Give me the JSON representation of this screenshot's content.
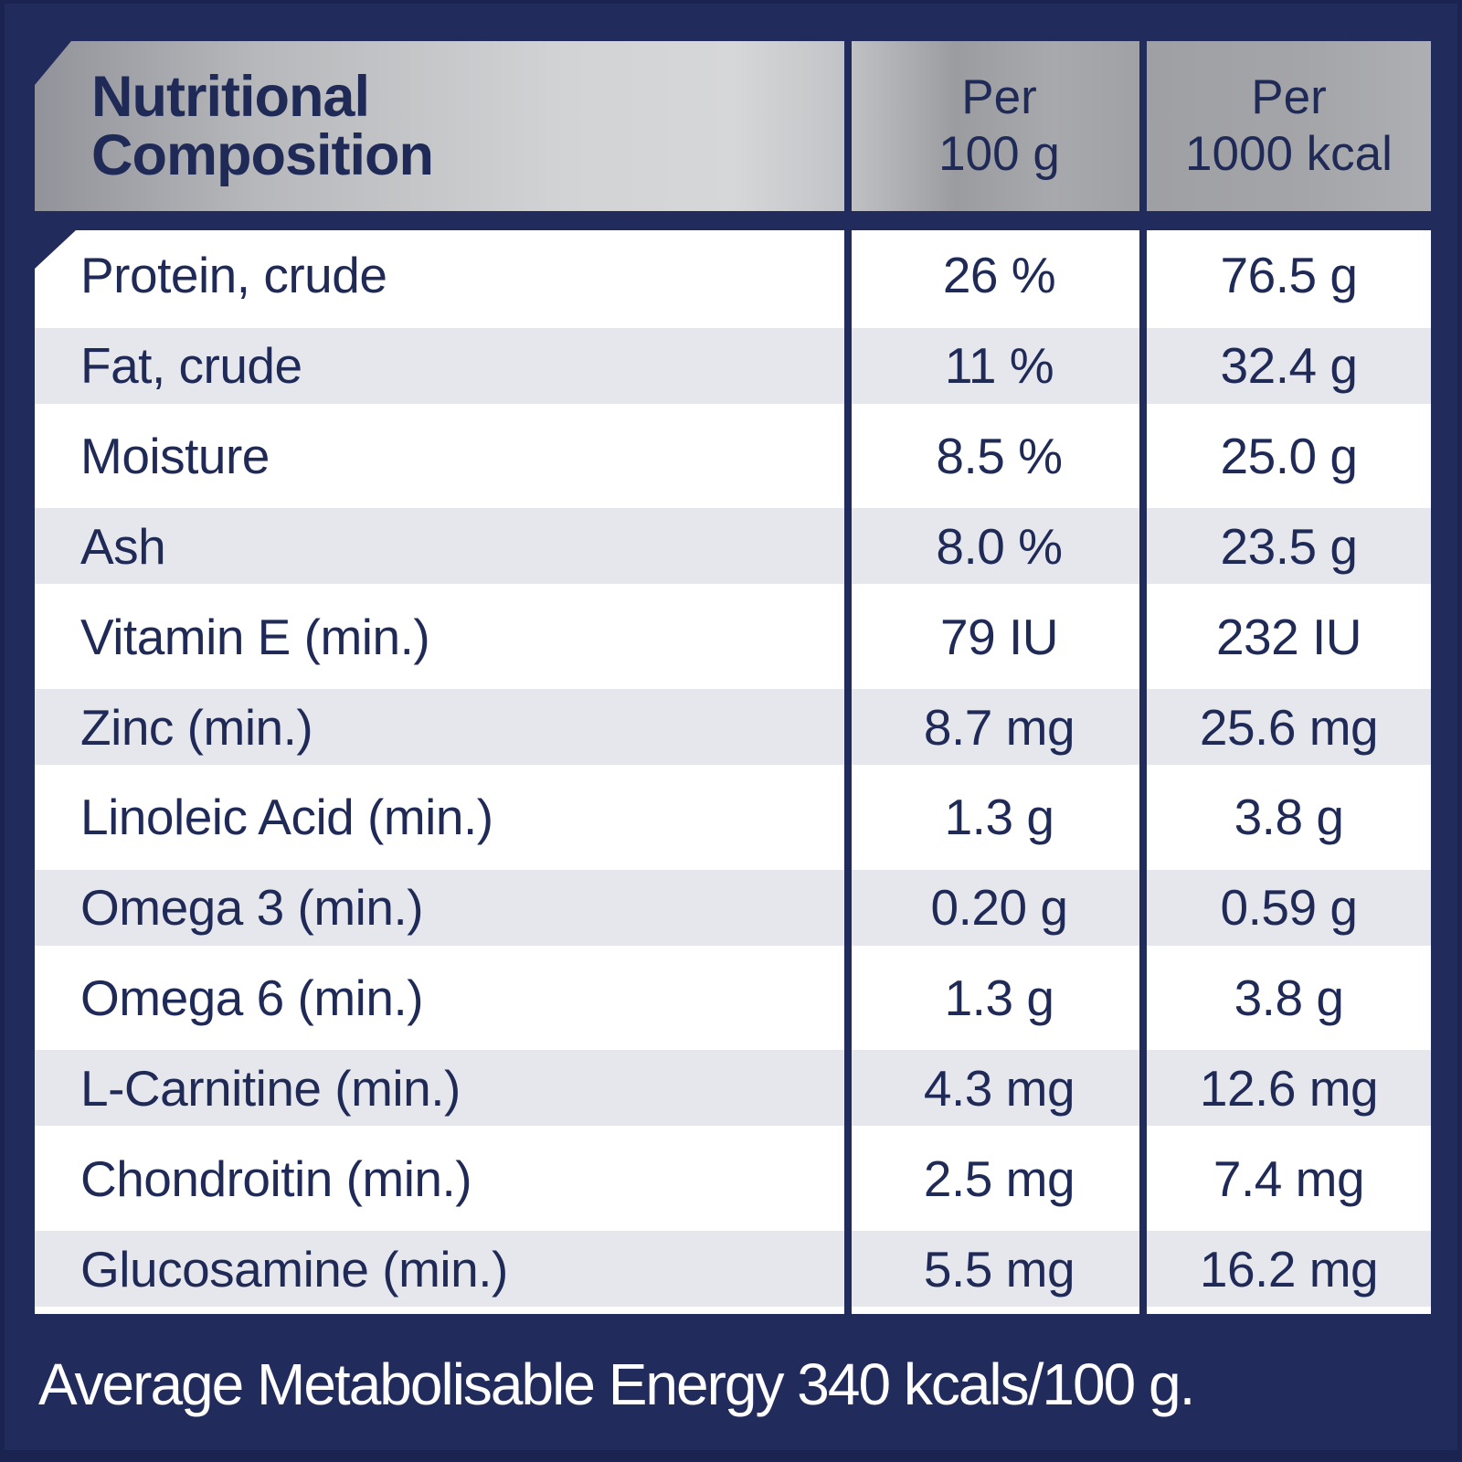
{
  "header": {
    "title_line1": "Nutritional",
    "title_line2": "Composition",
    "col_per_100g_line1": "Per",
    "col_per_100g_line2": "100 g",
    "col_per_1000kcal_line1": "Per",
    "col_per_1000kcal_line2": "1000 kcal"
  },
  "table": {
    "columns": [
      "Nutritional Composition",
      "Per 100 g",
      "Per 1000 kcal"
    ],
    "rows": [
      {
        "label": "Protein, crude",
        "per_100g": "26 %",
        "per_1000kcal": "76.5 g"
      },
      {
        "label": "Fat, crude",
        "per_100g": "11 %",
        "per_1000kcal": "32.4 g"
      },
      {
        "label": "Moisture",
        "per_100g": "8.5 %",
        "per_1000kcal": "25.0 g"
      },
      {
        "label": "Ash",
        "per_100g": "8.0 %",
        "per_1000kcal": "23.5 g"
      },
      {
        "label": "Vitamin E (min.)",
        "per_100g": "79 IU",
        "per_1000kcal": "232 IU"
      },
      {
        "label": "Zinc (min.)",
        "per_100g": "8.7 mg",
        "per_1000kcal": "25.6 mg"
      },
      {
        "label": "Linoleic Acid (min.)",
        "per_100g": "1.3 g",
        "per_1000kcal": "3.8 g"
      },
      {
        "label": "Omega 3 (min.)",
        "per_100g": "0.20 g",
        "per_1000kcal": "0.59 g"
      },
      {
        "label": "Omega 6 (min.)",
        "per_100g": "1.3 g",
        "per_1000kcal": "3.8 g"
      },
      {
        "label": "L-Carnitine (min.)",
        "per_100g": "4.3 mg",
        "per_1000kcal": "12.6 mg"
      },
      {
        "label": "Chondroitin (min.)",
        "per_100g": "2.5 mg",
        "per_1000kcal": "7.4 mg"
      },
      {
        "label": "Glucosamine (min.)",
        "per_100g": "5.5 mg",
        "per_1000kcal": "16.2 mg"
      }
    ]
  },
  "footer": {
    "text": "Average Metabolisable Energy 340 kcals/100 g."
  },
  "colors": {
    "background_navy": "#222c5c",
    "frame_navy_dark": "#1b2350",
    "text_navy": "#1f2a57",
    "row_stripe_gray": "#e6e7ed",
    "row_white": "#ffffff",
    "header_silver_light": "#d6d7d9",
    "header_silver_dark": "#92939a",
    "footer_text_white": "#ffffff"
  }
}
